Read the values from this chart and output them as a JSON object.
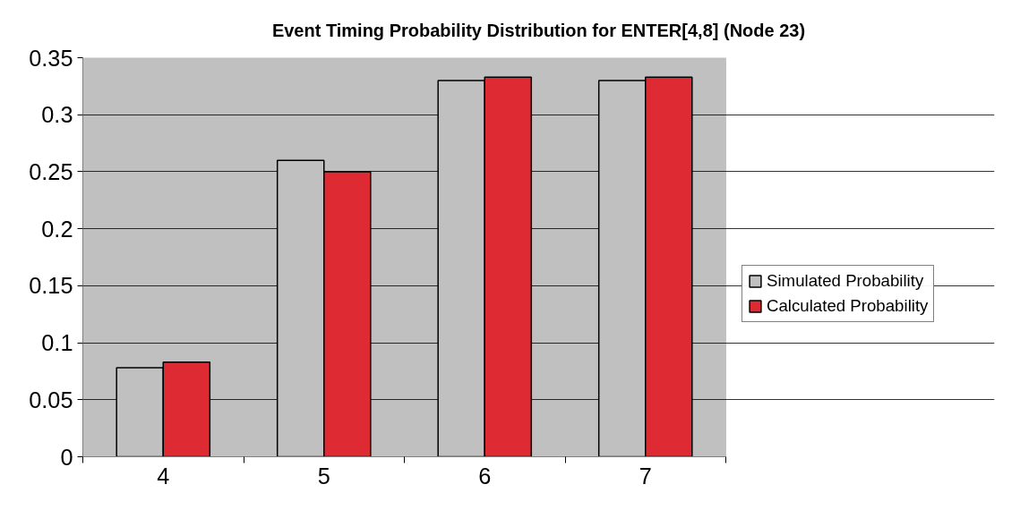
{
  "chart_data": {
    "type": "bar",
    "title": "Event Timing Probability Distribution for ENTER[4,8] (Node 23)",
    "categories": [
      "4",
      "5",
      "6",
      "7"
    ],
    "series": [
      {
        "name": "Simulated Probability",
        "color": "#c0c0c0",
        "values": [
          0.078,
          0.26,
          0.33,
          0.33
        ]
      },
      {
        "name": "Calculated Probability",
        "color": "#de2a33",
        "values": [
          0.083,
          0.25,
          0.333,
          0.333
        ]
      }
    ],
    "ylim": [
      0,
      0.35
    ],
    "yticks": [
      0,
      0.05,
      0.1,
      0.15,
      0.2,
      0.25,
      0.3,
      0.35
    ],
    "grid": "y",
    "legend": "right"
  }
}
